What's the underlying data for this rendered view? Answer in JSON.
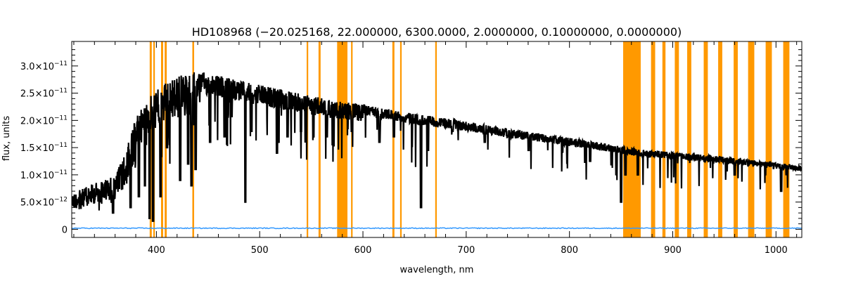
{
  "chart_data": {
    "type": "line",
    "title": "HD108968   (−20.025168, 22.000000, 6300.0000, 2.0000000, 0.10000000, 0.0000000)",
    "xlabel": "wavelength, nm",
    "ylabel": "flux, units",
    "xlim": [
      318,
      1025
    ],
    "ylim": [
      -1.5e-12,
      3.45e-11
    ],
    "grid": false,
    "x_ticks": [
      {
        "value": 400,
        "label": "400"
      },
      {
        "value": 500,
        "label": "500"
      },
      {
        "value": 600,
        "label": "600"
      },
      {
        "value": 700,
        "label": "700"
      },
      {
        "value": 800,
        "label": "800"
      },
      {
        "value": 900,
        "label": "900"
      },
      {
        "value": 1000,
        "label": "1000"
      }
    ],
    "y_ticks": [
      {
        "value": 0,
        "mantissa": "0",
        "exponent": ""
      },
      {
        "value": 5e-12,
        "mantissa": "5.0×10",
        "exponent": "−12"
      },
      {
        "value": 1e-11,
        "mantissa": "1.0×10",
        "exponent": "−11"
      },
      {
        "value": 1.5e-11,
        "mantissa": "1.5×10",
        "exponent": "−11"
      },
      {
        "value": 2e-11,
        "mantissa": "2.0×10",
        "exponent": "−11"
      },
      {
        "value": 2.5e-11,
        "mantissa": "2.5×10",
        "exponent": "−11"
      },
      {
        "value": 3e-11,
        "mantissa": "3.0×10",
        "exponent": "−11"
      }
    ],
    "masked_regions": {
      "color": "#FF9900",
      "bands": [
        [
          393.5,
          395.5
        ],
        [
          397.0,
          398.5
        ],
        [
          404.5,
          406.5
        ],
        [
          408.0,
          410.0
        ],
        [
          434.8,
          436.5
        ],
        [
          545.5,
          547.0
        ],
        [
          557.0,
          559.0
        ],
        [
          575.0,
          585.0
        ],
        [
          588.5,
          590.0
        ],
        [
          628.5,
          630.5
        ],
        [
          636.0,
          637.5
        ],
        [
          670.0,
          671.5
        ],
        [
          852.0,
          869.0
        ],
        [
          879.0,
          883.0
        ],
        [
          890.0,
          893.0
        ],
        [
          902.0,
          906.0
        ],
        [
          914.0,
          918.0
        ],
        [
          930.0,
          934.0
        ],
        [
          944.0,
          948.0
        ],
        [
          959.0,
          963.0
        ],
        [
          973.0,
          979.0
        ],
        [
          990.0,
          996.0
        ],
        [
          1007.0,
          1013.0
        ]
      ]
    },
    "series": [
      {
        "color": "#000000",
        "continuum": [
          [
            318,
            6.5e-12
          ],
          [
            340,
            8.5e-12
          ],
          [
            360,
            1e-11
          ],
          [
            370,
            1.4e-11
          ],
          [
            380,
            2.05e-11
          ],
          [
            395,
            2.5e-11
          ],
          [
            410,
            2.7e-11
          ],
          [
            425,
            2.85e-11
          ],
          [
            440,
            2.9e-11
          ],
          [
            470,
            2.78e-11
          ],
          [
            500,
            2.65e-11
          ],
          [
            550,
            2.45e-11
          ],
          [
            575,
            2.35e-11
          ],
          [
            600,
            2.3e-11
          ],
          [
            650,
            2.12e-11
          ],
          [
            700,
            1.98e-11
          ],
          [
            750,
            1.82e-11
          ],
          [
            800,
            1.68e-11
          ],
          [
            850,
            1.53e-11
          ],
          [
            870,
            1.46e-11
          ],
          [
            900,
            1.42e-11
          ],
          [
            950,
            1.33e-11
          ],
          [
            1000,
            1.22e-11
          ],
          [
            1025,
            1.17e-11
          ]
        ],
        "absorption_lines": [
          [
            358.0,
            3e-12
          ],
          [
            375.0,
            4e-12
          ],
          [
            383.0,
            6e-12
          ],
          [
            388.9,
            8e-12
          ],
          [
            393.4,
            2e-12
          ],
          [
            396.8,
            1.5e-12
          ],
          [
            404.0,
            6e-12
          ],
          [
            410.2,
            1.5e-11
          ],
          [
            423.0,
            9e-12
          ],
          [
            430.8,
            1.2e-11
          ],
          [
            434.0,
            8e-12
          ],
          [
            438.0,
            1.1e-11
          ],
          [
            452.0,
            1.6e-11
          ],
          [
            466.0,
            1.7e-11
          ],
          [
            486.1,
            5e-12
          ],
          [
            492.0,
            1.8e-11
          ],
          [
            516.8,
            1.4e-11
          ],
          [
            518.4,
            1.6e-11
          ],
          [
            527.0,
            1.7e-11
          ],
          [
            540.0,
            1.8e-11
          ],
          [
            552.0,
            1.7e-11
          ],
          [
            565.0,
            1.7e-11
          ],
          [
            589.2,
            1.8e-11
          ],
          [
            616.0,
            1.6e-11
          ],
          [
            630.0,
            1.7e-11
          ],
          [
            656.3,
            4e-12
          ],
          [
            686.7,
            1.8e-11
          ],
          [
            718.0,
            1.6e-11
          ],
          [
            760.5,
            1.45e-11
          ],
          [
            820.0,
            1.25e-11
          ],
          [
            850.0,
            5e-12
          ],
          [
            854.2,
            1e-11
          ],
          [
            866.2,
            1e-11
          ],
          [
            960.0,
            1e-11
          ],
          [
            1005.0,
            7e-12
          ]
        ]
      },
      {
        "color": "#3399FF",
        "constant": 2e-13
      }
    ]
  }
}
